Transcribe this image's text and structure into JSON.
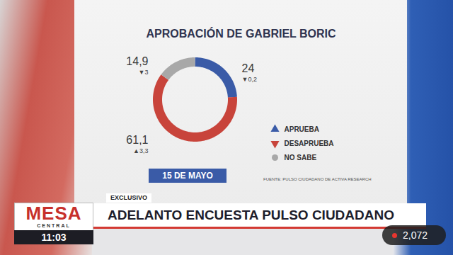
{
  "chart_data": {
    "type": "donut",
    "title": "APROBACIÓN DE GABRIEL BORIC",
    "categories": [
      "APRUEBA",
      "DESAPRUEBA",
      "NO SABE"
    ],
    "values": [
      24,
      61.1,
      14.9
    ],
    "value_labels": [
      "24",
      "61,1",
      "14,9"
    ],
    "change_labels": [
      "▼0,2",
      "▲3,3",
      "▼3"
    ],
    "colors": [
      "#3a5ba7",
      "#c8443b",
      "#a8a8a8"
    ],
    "data_labels": true,
    "legend": "right",
    "tick_labels": false,
    "date": "15 DE MAYO",
    "source": "FUENTE: PULSO CIUDADANO DE ACTIVA RESEARCH"
  },
  "overlay": {
    "tag": "EXCLUSIVO",
    "headline": "ADELANTO ENCUESTA PULSO CIUDADANO",
    "logo": "MESA",
    "logo_sub": "CENTRAL",
    "time": "11:03",
    "viewers": "2,072"
  }
}
